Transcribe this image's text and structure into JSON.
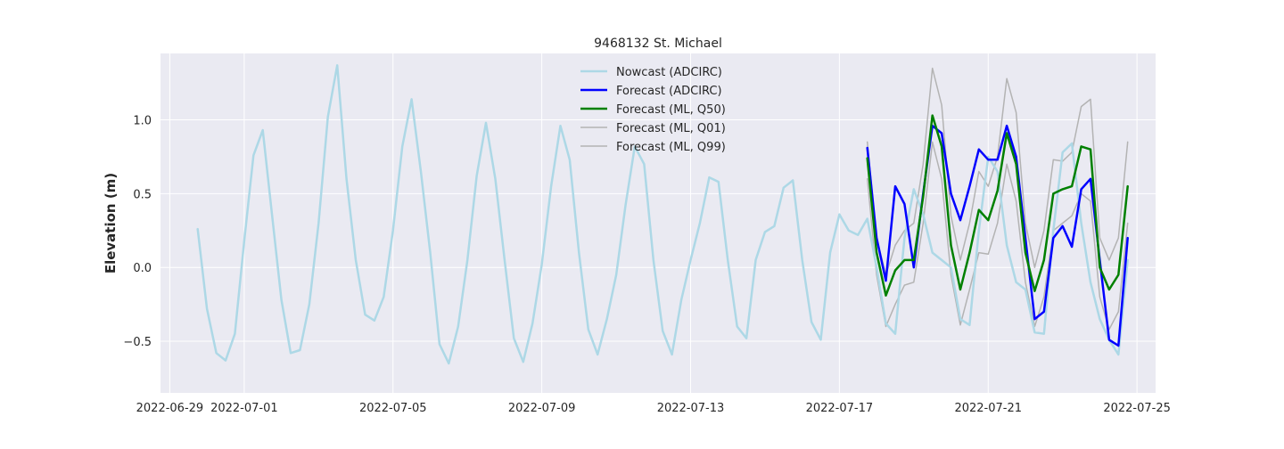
{
  "chart_data": {
    "type": "line",
    "title": "9468132 St. Michael",
    "xlabel": "",
    "ylabel": "Elevation (m)",
    "x_is_date": true,
    "xlim": [
      "2022-06-28T18:00",
      "2022-07-25T12:00"
    ],
    "ylim": [
      -0.85,
      1.45
    ],
    "xticks": [
      {
        "date": "2022-06-29",
        "label": "2022-06-29"
      },
      {
        "date": "2022-07-01",
        "label": "2022-07-01"
      },
      {
        "date": "2022-07-05",
        "label": "2022-07-05"
      },
      {
        "date": "2022-07-09",
        "label": "2022-07-09"
      },
      {
        "date": "2022-07-13",
        "label": "2022-07-13"
      },
      {
        "date": "2022-07-17",
        "label": "2022-07-17"
      },
      {
        "date": "2022-07-21",
        "label": "2022-07-21"
      },
      {
        "date": "2022-07-25",
        "label": "2022-07-25"
      }
    ],
    "yticks": [
      {
        "value": -0.5,
        "label": "−0.5"
      },
      {
        "value": 0.0,
        "label": "0.0"
      },
      {
        "value": 0.5,
        "label": "0.5"
      },
      {
        "value": 1.0,
        "label": "1.0"
      }
    ],
    "grid": true,
    "legend_position": "top-center",
    "colors": {
      "background": "#eaeaf2",
      "grid": "#ffffff",
      "text": "#262626"
    },
    "series": [
      {
        "name": "Nowcast (ADCIRC)",
        "color": "#add8e6",
        "width": 2.5,
        "points": [
          [
            "2022-06-29T18:00",
            0.26
          ],
          [
            "2022-06-30T00:00",
            -0.28
          ],
          [
            "2022-06-30T06:00",
            -0.58
          ],
          [
            "2022-06-30T12:00",
            -0.63
          ],
          [
            "2022-06-30T18:00",
            -0.45
          ],
          [
            "2022-07-01T00:00",
            0.18
          ],
          [
            "2022-07-01T06:00",
            0.76
          ],
          [
            "2022-07-01T12:00",
            0.93
          ],
          [
            "2022-07-01T18:00",
            0.35
          ],
          [
            "2022-07-02T00:00",
            -0.22
          ],
          [
            "2022-07-02T06:00",
            -0.58
          ],
          [
            "2022-07-02T12:00",
            -0.56
          ],
          [
            "2022-07-02T18:00",
            -0.25
          ],
          [
            "2022-07-03T00:00",
            0.3
          ],
          [
            "2022-07-03T06:00",
            1.02
          ],
          [
            "2022-07-03T12:00",
            1.37
          ],
          [
            "2022-07-03T18:00",
            0.6
          ],
          [
            "2022-07-04T00:00",
            0.05
          ],
          [
            "2022-07-04T06:00",
            -0.32
          ],
          [
            "2022-07-04T12:00",
            -0.36
          ],
          [
            "2022-07-04T18:00",
            -0.2
          ],
          [
            "2022-07-05T00:00",
            0.25
          ],
          [
            "2022-07-05T06:00",
            0.82
          ],
          [
            "2022-07-05T12:00",
            1.14
          ],
          [
            "2022-07-05T18:00",
            0.65
          ],
          [
            "2022-07-06T00:00",
            0.1
          ],
          [
            "2022-07-06T06:00",
            -0.52
          ],
          [
            "2022-07-06T12:00",
            -0.65
          ],
          [
            "2022-07-06T18:00",
            -0.4
          ],
          [
            "2022-07-07T00:00",
            0.05
          ],
          [
            "2022-07-07T06:00",
            0.62
          ],
          [
            "2022-07-07T12:00",
            0.98
          ],
          [
            "2022-07-07T18:00",
            0.6
          ],
          [
            "2022-07-08T00:00",
            0.05
          ],
          [
            "2022-07-08T06:00",
            -0.48
          ],
          [
            "2022-07-08T12:00",
            -0.64
          ],
          [
            "2022-07-08T18:00",
            -0.38
          ],
          [
            "2022-07-09T00:00",
            0.02
          ],
          [
            "2022-07-09T06:00",
            0.55
          ],
          [
            "2022-07-09T12:00",
            0.96
          ],
          [
            "2022-07-09T18:00",
            0.73
          ],
          [
            "2022-07-10T00:00",
            0.1
          ],
          [
            "2022-07-10T06:00",
            -0.42
          ],
          [
            "2022-07-10T12:00",
            -0.59
          ],
          [
            "2022-07-10T18:00",
            -0.35
          ],
          [
            "2022-07-11T00:00",
            -0.05
          ],
          [
            "2022-07-11T06:00",
            0.42
          ],
          [
            "2022-07-11T12:00",
            0.82
          ],
          [
            "2022-07-11T18:00",
            0.7
          ],
          [
            "2022-07-12T00:00",
            0.05
          ],
          [
            "2022-07-12T06:00",
            -0.43
          ],
          [
            "2022-07-12T12:00",
            -0.59
          ],
          [
            "2022-07-12T18:00",
            -0.22
          ],
          [
            "2022-07-13T00:00",
            0.05
          ],
          [
            "2022-07-13T06:00",
            0.3
          ],
          [
            "2022-07-13T12:00",
            0.61
          ],
          [
            "2022-07-13T18:00",
            0.58
          ],
          [
            "2022-07-14T00:00",
            0.05
          ],
          [
            "2022-07-14T06:00",
            -0.4
          ],
          [
            "2022-07-14T12:00",
            -0.48
          ],
          [
            "2022-07-14T18:00",
            0.05
          ],
          [
            "2022-07-15T00:00",
            0.24
          ],
          [
            "2022-07-15T06:00",
            0.28
          ],
          [
            "2022-07-15T12:00",
            0.54
          ],
          [
            "2022-07-15T18:00",
            0.59
          ],
          [
            "2022-07-16T00:00",
            0.05
          ],
          [
            "2022-07-16T06:00",
            -0.37
          ],
          [
            "2022-07-16T12:00",
            -0.49
          ],
          [
            "2022-07-16T18:00",
            0.1
          ],
          [
            "2022-07-17T00:00",
            0.36
          ],
          [
            "2022-07-17T06:00",
            0.25
          ],
          [
            "2022-07-17T12:00",
            0.22
          ],
          [
            "2022-07-17T18:00",
            0.33
          ],
          [
            "2022-07-18T00:00",
            0.0
          ],
          [
            "2022-07-18T06:00",
            -0.38
          ],
          [
            "2022-07-18T12:00",
            -0.45
          ],
          [
            "2022-07-18T18:00",
            0.2
          ],
          [
            "2022-07-19T00:00",
            0.53
          ],
          [
            "2022-07-19T06:00",
            0.36
          ],
          [
            "2022-07-19T12:00",
            0.1
          ],
          [
            "2022-07-19T18:00",
            0.05
          ],
          [
            "2022-07-20T00:00",
            0.0
          ],
          [
            "2022-07-20T06:00",
            -0.35
          ],
          [
            "2022-07-20T12:00",
            -0.39
          ],
          [
            "2022-07-20T18:00",
            0.25
          ],
          [
            "2022-07-21T00:00",
            0.75
          ],
          [
            "2022-07-21T06:00",
            0.65
          ],
          [
            "2022-07-21T12:00",
            0.15
          ],
          [
            "2022-07-21T18:00",
            -0.1
          ],
          [
            "2022-07-22T00:00",
            -0.15
          ],
          [
            "2022-07-22T06:00",
            -0.44
          ],
          [
            "2022-07-22T12:00",
            -0.45
          ],
          [
            "2022-07-22T18:00",
            0.25
          ],
          [
            "2022-07-23T00:00",
            0.78
          ],
          [
            "2022-07-23T06:00",
            0.84
          ],
          [
            "2022-07-23T12:00",
            0.3
          ],
          [
            "2022-07-23T18:00",
            -0.1
          ],
          [
            "2022-07-24T00:00",
            -0.35
          ],
          [
            "2022-07-24T06:00",
            -0.49
          ],
          [
            "2022-07-24T12:00",
            -0.59
          ],
          [
            "2022-07-24T18:00",
            0.05
          ]
        ]
      },
      {
        "name": "Forecast (ADCIRC)",
        "color": "#0000ff",
        "width": 2.5,
        "points": [
          [
            "2022-07-17T18:00",
            0.81
          ],
          [
            "2022-07-18T00:00",
            0.2
          ],
          [
            "2022-07-18T06:00",
            -0.09
          ],
          [
            "2022-07-18T12:00",
            0.55
          ],
          [
            "2022-07-18T18:00",
            0.43
          ],
          [
            "2022-07-19T00:00",
            0.0
          ],
          [
            "2022-07-19T06:00",
            0.5
          ],
          [
            "2022-07-19T12:00",
            0.96
          ],
          [
            "2022-07-19T18:00",
            0.91
          ],
          [
            "2022-07-20T00:00",
            0.5
          ],
          [
            "2022-07-20T06:00",
            0.32
          ],
          [
            "2022-07-20T12:00",
            0.55
          ],
          [
            "2022-07-20T18:00",
            0.8
          ],
          [
            "2022-07-21T00:00",
            0.73
          ],
          [
            "2022-07-21T06:00",
            0.73
          ],
          [
            "2022-07-21T12:00",
            0.96
          ],
          [
            "2022-07-21T18:00",
            0.75
          ],
          [
            "2022-07-22T00:00",
            0.2
          ],
          [
            "2022-07-22T06:00",
            -0.35
          ],
          [
            "2022-07-22T12:00",
            -0.3
          ],
          [
            "2022-07-22T18:00",
            0.2
          ],
          [
            "2022-07-23T00:00",
            0.28
          ],
          [
            "2022-07-23T06:00",
            0.14
          ],
          [
            "2022-07-23T12:00",
            0.53
          ],
          [
            "2022-07-23T18:00",
            0.6
          ],
          [
            "2022-07-24T00:00",
            0.05
          ],
          [
            "2022-07-24T06:00",
            -0.49
          ],
          [
            "2022-07-24T12:00",
            -0.53
          ],
          [
            "2022-07-24T18:00",
            0.2
          ]
        ]
      },
      {
        "name": "Forecast (ML, Q50)",
        "color": "#008000",
        "width": 2.5,
        "points": [
          [
            "2022-07-17T18:00",
            0.74
          ],
          [
            "2022-07-18T00:00",
            0.1
          ],
          [
            "2022-07-18T06:00",
            -0.19
          ],
          [
            "2022-07-18T12:00",
            -0.02
          ],
          [
            "2022-07-18T18:00",
            0.05
          ],
          [
            "2022-07-19T00:00",
            0.05
          ],
          [
            "2022-07-19T06:00",
            0.48
          ],
          [
            "2022-07-19T12:00",
            1.03
          ],
          [
            "2022-07-19T18:00",
            0.82
          ],
          [
            "2022-07-20T00:00",
            0.15
          ],
          [
            "2022-07-20T06:00",
            -0.15
          ],
          [
            "2022-07-20T12:00",
            0.1
          ],
          [
            "2022-07-20T18:00",
            0.39
          ],
          [
            "2022-07-21T00:00",
            0.32
          ],
          [
            "2022-07-21T06:00",
            0.52
          ],
          [
            "2022-07-21T12:00",
            0.91
          ],
          [
            "2022-07-21T18:00",
            0.7
          ],
          [
            "2022-07-22T00:00",
            0.1
          ],
          [
            "2022-07-22T06:00",
            -0.16
          ],
          [
            "2022-07-22T12:00",
            0.05
          ],
          [
            "2022-07-22T18:00",
            0.5
          ],
          [
            "2022-07-23T00:00",
            0.53
          ],
          [
            "2022-07-23T06:00",
            0.55
          ],
          [
            "2022-07-23T12:00",
            0.82
          ],
          [
            "2022-07-23T18:00",
            0.8
          ],
          [
            "2022-07-24T00:00",
            0.0
          ],
          [
            "2022-07-24T06:00",
            -0.15
          ],
          [
            "2022-07-24T12:00",
            -0.05
          ],
          [
            "2022-07-24T18:00",
            0.55
          ]
        ]
      },
      {
        "name": "Forecast (ML, Q01)",
        "color": "#b3b3b3",
        "width": 1.5,
        "points": [
          [
            "2022-07-17T18:00",
            0.6
          ],
          [
            "2022-07-18T00:00",
            -0.05
          ],
          [
            "2022-07-18T06:00",
            -0.4
          ],
          [
            "2022-07-18T12:00",
            -0.25
          ],
          [
            "2022-07-18T18:00",
            -0.12
          ],
          [
            "2022-07-19T00:00",
            -0.1
          ],
          [
            "2022-07-19T06:00",
            0.3
          ],
          [
            "2022-07-19T12:00",
            0.85
          ],
          [
            "2022-07-19T18:00",
            0.6
          ],
          [
            "2022-07-20T00:00",
            -0.05
          ],
          [
            "2022-07-20T06:00",
            -0.39
          ],
          [
            "2022-07-20T12:00",
            -0.15
          ],
          [
            "2022-07-20T18:00",
            0.1
          ],
          [
            "2022-07-21T00:00",
            0.09
          ],
          [
            "2022-07-21T06:00",
            0.3
          ],
          [
            "2022-07-21T12:00",
            0.7
          ],
          [
            "2022-07-21T18:00",
            0.45
          ],
          [
            "2022-07-22T00:00",
            -0.1
          ],
          [
            "2022-07-22T06:00",
            -0.4
          ],
          [
            "2022-07-22T12:00",
            -0.2
          ],
          [
            "2022-07-22T18:00",
            0.25
          ],
          [
            "2022-07-23T00:00",
            0.3
          ],
          [
            "2022-07-23T06:00",
            0.35
          ],
          [
            "2022-07-23T12:00",
            0.5
          ],
          [
            "2022-07-23T18:00",
            0.45
          ],
          [
            "2022-07-24T00:00",
            -0.2
          ],
          [
            "2022-07-24T06:00",
            -0.42
          ],
          [
            "2022-07-24T12:00",
            -0.3
          ],
          [
            "2022-07-24T18:00",
            0.3
          ]
        ]
      },
      {
        "name": "Forecast (ML, Q99)",
        "color": "#b3b3b3",
        "width": 1.5,
        "points": [
          [
            "2022-07-17T18:00",
            0.85
          ],
          [
            "2022-07-18T00:00",
            0.2
          ],
          [
            "2022-07-18T06:00",
            -0.05
          ],
          [
            "2022-07-18T12:00",
            0.15
          ],
          [
            "2022-07-18T18:00",
            0.25
          ],
          [
            "2022-07-19T00:00",
            0.3
          ],
          [
            "2022-07-19T06:00",
            0.7
          ],
          [
            "2022-07-19T12:00",
            1.35
          ],
          [
            "2022-07-19T18:00",
            1.1
          ],
          [
            "2022-07-20T00:00",
            0.35
          ],
          [
            "2022-07-20T06:00",
            0.05
          ],
          [
            "2022-07-20T12:00",
            0.3
          ],
          [
            "2022-07-20T18:00",
            0.65
          ],
          [
            "2022-07-21T00:00",
            0.55
          ],
          [
            "2022-07-21T06:00",
            0.75
          ],
          [
            "2022-07-21T12:00",
            1.28
          ],
          [
            "2022-07-21T18:00",
            1.05
          ],
          [
            "2022-07-22T00:00",
            0.3
          ],
          [
            "2022-07-22T06:00",
            0.0
          ],
          [
            "2022-07-22T12:00",
            0.25
          ],
          [
            "2022-07-22T18:00",
            0.73
          ],
          [
            "2022-07-23T00:00",
            0.72
          ],
          [
            "2022-07-23T06:00",
            0.78
          ],
          [
            "2022-07-23T12:00",
            1.09
          ],
          [
            "2022-07-23T18:00",
            1.14
          ],
          [
            "2022-07-24T00:00",
            0.2
          ],
          [
            "2022-07-24T06:00",
            0.05
          ],
          [
            "2022-07-24T12:00",
            0.2
          ],
          [
            "2022-07-24T18:00",
            0.85
          ]
        ]
      }
    ]
  }
}
